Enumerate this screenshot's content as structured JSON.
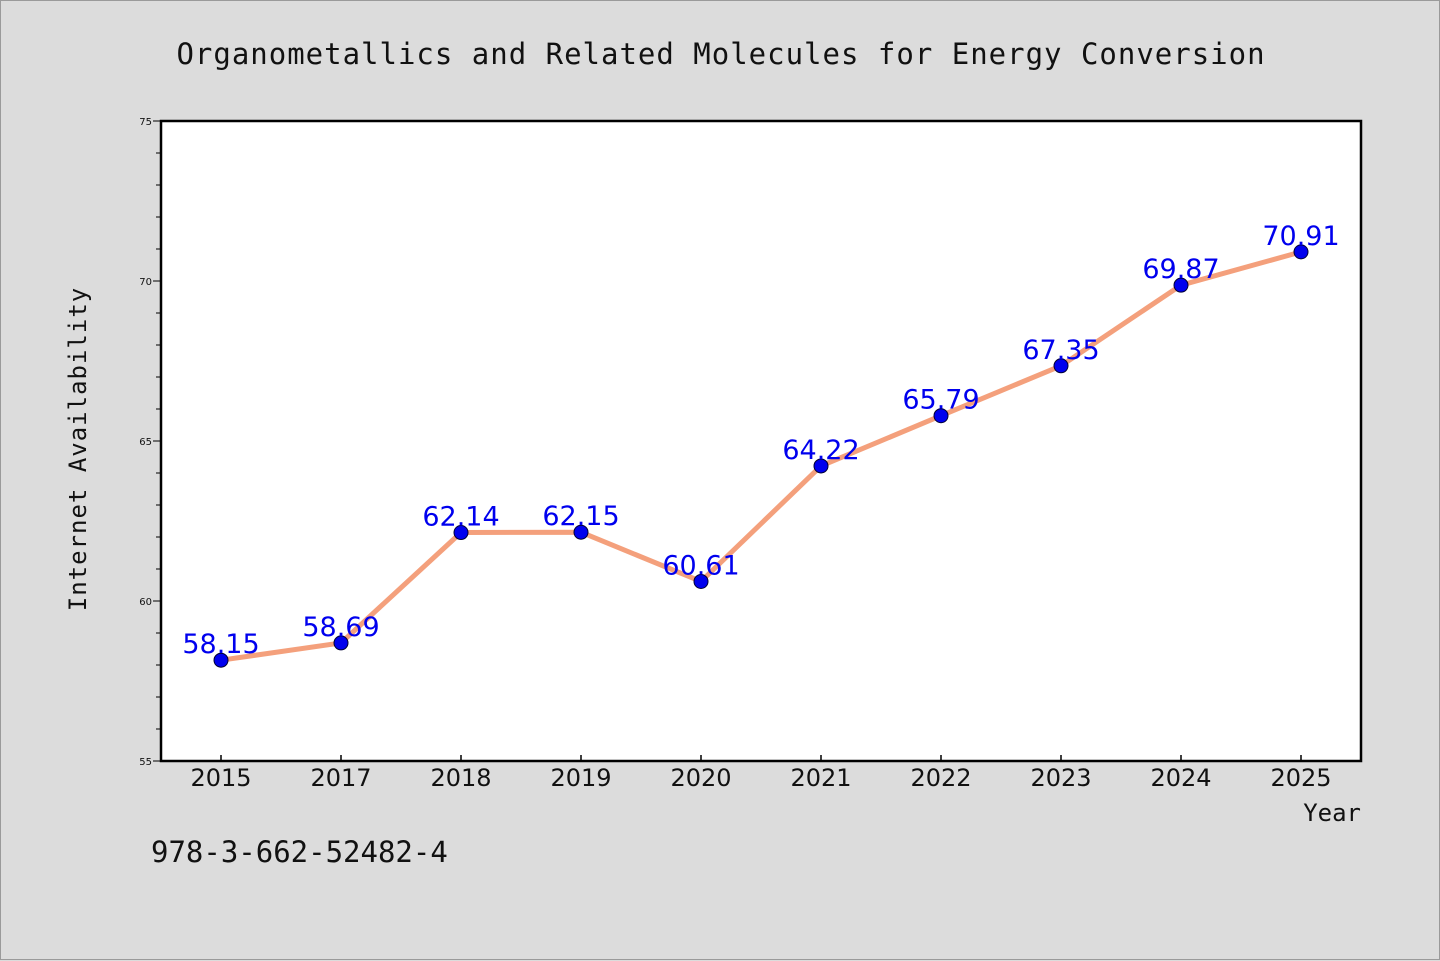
{
  "chart_data": {
    "type": "line",
    "title": "Organometallics and Related Molecules for Energy Conversion",
    "xlabel": "Year",
    "ylabel": "Internet Availability",
    "categories": [
      "2015",
      "2017",
      "2018",
      "2019",
      "2020",
      "2021",
      "2022",
      "2023",
      "2024",
      "2025"
    ],
    "series": [
      {
        "values": [
          58.15,
          58.69,
          62.14,
          62.15,
          60.61,
          64.22,
          65.79,
          67.35,
          69.87,
          70.91
        ]
      }
    ],
    "data_labels": [
      "58.15",
      "58.69",
      "62.14",
      "62.15",
      "60.61",
      "64.22",
      "65.79",
      "67.35",
      "69.87",
      "70.91"
    ],
    "ylim": [
      55,
      75
    ],
    "yticks": [
      55,
      60,
      65,
      70,
      75
    ],
    "grid": false,
    "line_color": "#f4a07c",
    "marker_color": "#0000ee",
    "label_color": "#0000ee"
  },
  "footnote": "978-3-662-52482-4"
}
